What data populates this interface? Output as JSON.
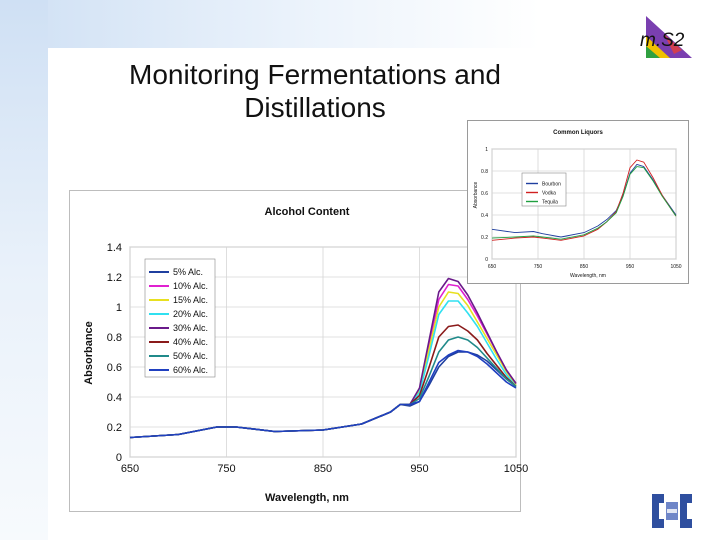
{
  "slide": {
    "title": "Monitoring Fermentations and Distillations",
    "logo_text": "m.S2"
  },
  "colors": {
    "band": "#cfe0f4",
    "bottom_logo": "#2f4f9f"
  },
  "chart_data": [
    {
      "type": "line",
      "title": "Alcohol Content",
      "xlabel": "Wavelength, nm",
      "ylabel": "Absorbance",
      "xlim": [
        650,
        1050
      ],
      "ylim": [
        0,
        1.4
      ],
      "xticks": [
        650,
        750,
        850,
        950,
        1050
      ],
      "yticks": [
        0,
        0.2,
        0.4,
        0.6,
        0.8,
        1,
        1.2,
        1.4
      ],
      "grid": true,
      "legend_position": "upper-left",
      "x": [
        650,
        700,
        740,
        760,
        800,
        850,
        890,
        920,
        930,
        940,
        950,
        960,
        970,
        980,
        990,
        1000,
        1010,
        1020,
        1030,
        1040,
        1050
      ],
      "series": [
        {
          "name": "5% Alc.",
          "color": "#1f3f9f",
          "values": [
            0.13,
            0.15,
            0.2,
            0.2,
            0.17,
            0.18,
            0.22,
            0.3,
            0.35,
            0.34,
            0.37,
            0.48,
            0.6,
            0.67,
            0.7,
            0.7,
            0.68,
            0.64,
            0.58,
            0.52,
            0.47
          ]
        },
        {
          "name": "10% Alc.",
          "color": "#e020d0",
          "values": [
            0.13,
            0.15,
            0.2,
            0.2,
            0.17,
            0.18,
            0.22,
            0.3,
            0.35,
            0.35,
            0.45,
            0.75,
            1.05,
            1.15,
            1.14,
            1.05,
            0.94,
            0.82,
            0.7,
            0.58,
            0.49
          ]
        },
        {
          "name": "15% Alc.",
          "color": "#e8e020",
          "values": [
            0.13,
            0.15,
            0.2,
            0.2,
            0.17,
            0.18,
            0.22,
            0.3,
            0.35,
            0.35,
            0.44,
            0.72,
            1.0,
            1.1,
            1.09,
            1.01,
            0.9,
            0.79,
            0.68,
            0.57,
            0.48
          ]
        },
        {
          "name": "20% Alc.",
          "color": "#30e0f0",
          "values": [
            0.13,
            0.15,
            0.2,
            0.2,
            0.17,
            0.18,
            0.22,
            0.3,
            0.35,
            0.35,
            0.43,
            0.68,
            0.95,
            1.04,
            1.04,
            0.96,
            0.87,
            0.76,
            0.65,
            0.55,
            0.47
          ]
        },
        {
          "name": "30% Alc.",
          "color": "#6a1a8a",
          "values": [
            0.13,
            0.15,
            0.2,
            0.2,
            0.17,
            0.18,
            0.22,
            0.3,
            0.35,
            0.35,
            0.46,
            0.78,
            1.1,
            1.19,
            1.17,
            1.08,
            0.96,
            0.83,
            0.7,
            0.58,
            0.49
          ]
        },
        {
          "name": "40% Alc.",
          "color": "#8a1a1a",
          "values": [
            0.13,
            0.15,
            0.2,
            0.2,
            0.17,
            0.18,
            0.22,
            0.3,
            0.35,
            0.35,
            0.41,
            0.6,
            0.8,
            0.87,
            0.88,
            0.84,
            0.78,
            0.69,
            0.61,
            0.53,
            0.47
          ]
        },
        {
          "name": "50% Alc.",
          "color": "#208a8a",
          "values": [
            0.13,
            0.15,
            0.2,
            0.2,
            0.17,
            0.18,
            0.22,
            0.3,
            0.35,
            0.35,
            0.39,
            0.54,
            0.7,
            0.78,
            0.8,
            0.78,
            0.73,
            0.66,
            0.59,
            0.52,
            0.47
          ]
        },
        {
          "name": "60% Alc.",
          "color": "#2040c0",
          "values": [
            0.13,
            0.15,
            0.2,
            0.2,
            0.17,
            0.18,
            0.22,
            0.3,
            0.35,
            0.35,
            0.37,
            0.5,
            0.63,
            0.68,
            0.71,
            0.7,
            0.67,
            0.62,
            0.56,
            0.5,
            0.46
          ]
        }
      ]
    },
    {
      "type": "line",
      "title": "Common Liquors",
      "xlabel": "Wavelength, nm",
      "ylabel": "Absorbance",
      "xlim": [
        650,
        1050
      ],
      "ylim": [
        0,
        1
      ],
      "xticks": [
        650,
        750,
        850,
        950,
        1050
      ],
      "yticks": [
        0,
        0.2,
        0.4,
        0.6,
        0.8,
        1
      ],
      "grid": true,
      "legend_position": "center-left",
      "x": [
        650,
        700,
        740,
        760,
        800,
        850,
        880,
        900,
        920,
        935,
        950,
        965,
        980,
        1000,
        1020,
        1040,
        1050
      ],
      "series": [
        {
          "name": "Bourbon",
          "color": "#1f3f9f",
          "values": [
            0.27,
            0.24,
            0.25,
            0.23,
            0.2,
            0.24,
            0.3,
            0.36,
            0.44,
            0.58,
            0.78,
            0.86,
            0.84,
            0.72,
            0.58,
            0.46,
            0.4
          ]
        },
        {
          "name": "Vodka",
          "color": "#d02020",
          "values": [
            0.17,
            0.19,
            0.2,
            0.19,
            0.17,
            0.21,
            0.27,
            0.34,
            0.43,
            0.6,
            0.83,
            0.9,
            0.88,
            0.74,
            0.58,
            0.45,
            0.39
          ]
        },
        {
          "name": "Tequila",
          "color": "#20a040",
          "values": [
            0.19,
            0.2,
            0.21,
            0.2,
            0.18,
            0.22,
            0.28,
            0.34,
            0.42,
            0.57,
            0.77,
            0.84,
            0.83,
            0.71,
            0.57,
            0.45,
            0.39
          ]
        }
      ]
    }
  ]
}
